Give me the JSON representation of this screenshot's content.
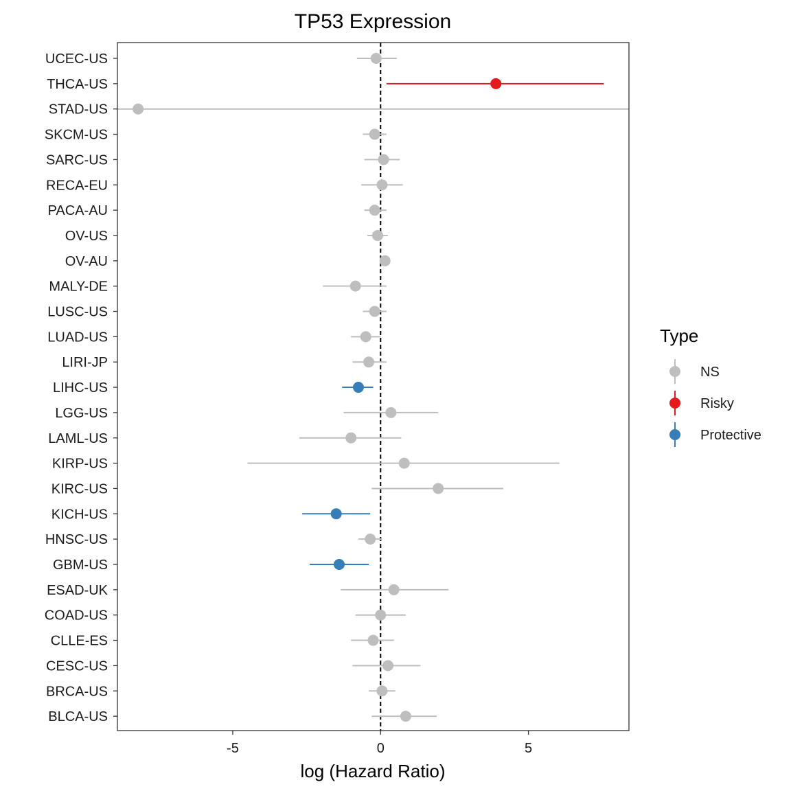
{
  "chart_data": {
    "type": "scatter",
    "title": "TP53 Expression",
    "xlabel": "log (Hazard Ratio)",
    "ylabel": "",
    "xlim": [
      -8.9,
      8.4
    ],
    "xticks": [
      -5,
      0,
      5
    ],
    "xtick_labels": [
      "-5",
      "0",
      "5"
    ],
    "reference_line": 0,
    "grid": false,
    "legend": {
      "title": "Type",
      "placement": "right",
      "entries": [
        {
          "label": "NS",
          "color": "#BEBEBE"
        },
        {
          "label": "Risky",
          "color": "#E41A1C"
        },
        {
          "label": "Protective",
          "color": "#377EB8"
        }
      ]
    },
    "points": [
      {
        "label": "UCEC-US",
        "type": "NS",
        "hr": -0.15,
        "low": -0.8,
        "high": 0.55
      },
      {
        "label": "THCA-US",
        "type": "Risky",
        "hr": 3.9,
        "low": 0.2,
        "high": 7.55
      },
      {
        "label": "STAD-US",
        "type": "NS",
        "hr": -8.2,
        "low": -8.9,
        "high": 8.4
      },
      {
        "label": "SKCM-US",
        "type": "NS",
        "hr": -0.2,
        "low": -0.6,
        "high": 0.2
      },
      {
        "label": "SARC-US",
        "type": "NS",
        "hr": 0.1,
        "low": -0.55,
        "high": 0.65
      },
      {
        "label": "RECA-EU",
        "type": "NS",
        "hr": 0.05,
        "low": -0.65,
        "high": 0.75
      },
      {
        "label": "PACA-AU",
        "type": "NS",
        "hr": -0.2,
        "low": -0.55,
        "high": 0.2
      },
      {
        "label": "OV-US",
        "type": "NS",
        "hr": -0.1,
        "low": -0.45,
        "high": 0.25
      },
      {
        "label": "OV-AU",
        "type": "NS",
        "hr": 0.15,
        "low": 0.0,
        "high": 0.3
      },
      {
        "label": "MALY-DE",
        "type": "NS",
        "hr": -0.85,
        "low": -1.95,
        "high": 0.2
      },
      {
        "label": "LUSC-US",
        "type": "NS",
        "hr": -0.2,
        "low": -0.6,
        "high": 0.2
      },
      {
        "label": "LUAD-US",
        "type": "NS",
        "hr": -0.5,
        "low": -1.0,
        "high": 0.0
      },
      {
        "label": "LIRI-JP",
        "type": "NS",
        "hr": -0.4,
        "low": -0.95,
        "high": 0.2
      },
      {
        "label": "LIHC-US",
        "type": "Protective",
        "hr": -0.75,
        "low": -1.3,
        "high": -0.25
      },
      {
        "label": "LGG-US",
        "type": "NS",
        "hr": 0.35,
        "low": -1.25,
        "high": 1.95
      },
      {
        "label": "LAML-US",
        "type": "NS",
        "hr": -1.0,
        "low": -2.75,
        "high": 0.7
      },
      {
        "label": "KIRP-US",
        "type": "NS",
        "hr": 0.8,
        "low": -4.5,
        "high": 6.05
      },
      {
        "label": "KIRC-US",
        "type": "NS",
        "hr": 1.95,
        "low": -0.3,
        "high": 4.15
      },
      {
        "label": "KICH-US",
        "type": "Protective",
        "hr": -1.5,
        "low": -2.65,
        "high": -0.35
      },
      {
        "label": "HNSC-US",
        "type": "NS",
        "hr": -0.35,
        "low": -0.75,
        "high": 0.05
      },
      {
        "label": "GBM-US",
        "type": "Protective",
        "hr": -1.4,
        "low": -2.4,
        "high": -0.4
      },
      {
        "label": "ESAD-UK",
        "type": "NS",
        "hr": 0.45,
        "low": -1.35,
        "high": 2.3
      },
      {
        "label": "COAD-US",
        "type": "NS",
        "hr": 0.0,
        "low": -0.85,
        "high": 0.85
      },
      {
        "label": "CLLE-ES",
        "type": "NS",
        "hr": -0.25,
        "low": -1.0,
        "high": 0.45
      },
      {
        "label": "CESC-US",
        "type": "NS",
        "hr": 0.25,
        "low": -0.95,
        "high": 1.35
      },
      {
        "label": "BRCA-US",
        "type": "NS",
        "hr": 0.05,
        "low": -0.4,
        "high": 0.5
      },
      {
        "label": "BLCA-US",
        "type": "NS",
        "hr": 0.85,
        "low": -0.3,
        "high": 1.9
      }
    ]
  }
}
